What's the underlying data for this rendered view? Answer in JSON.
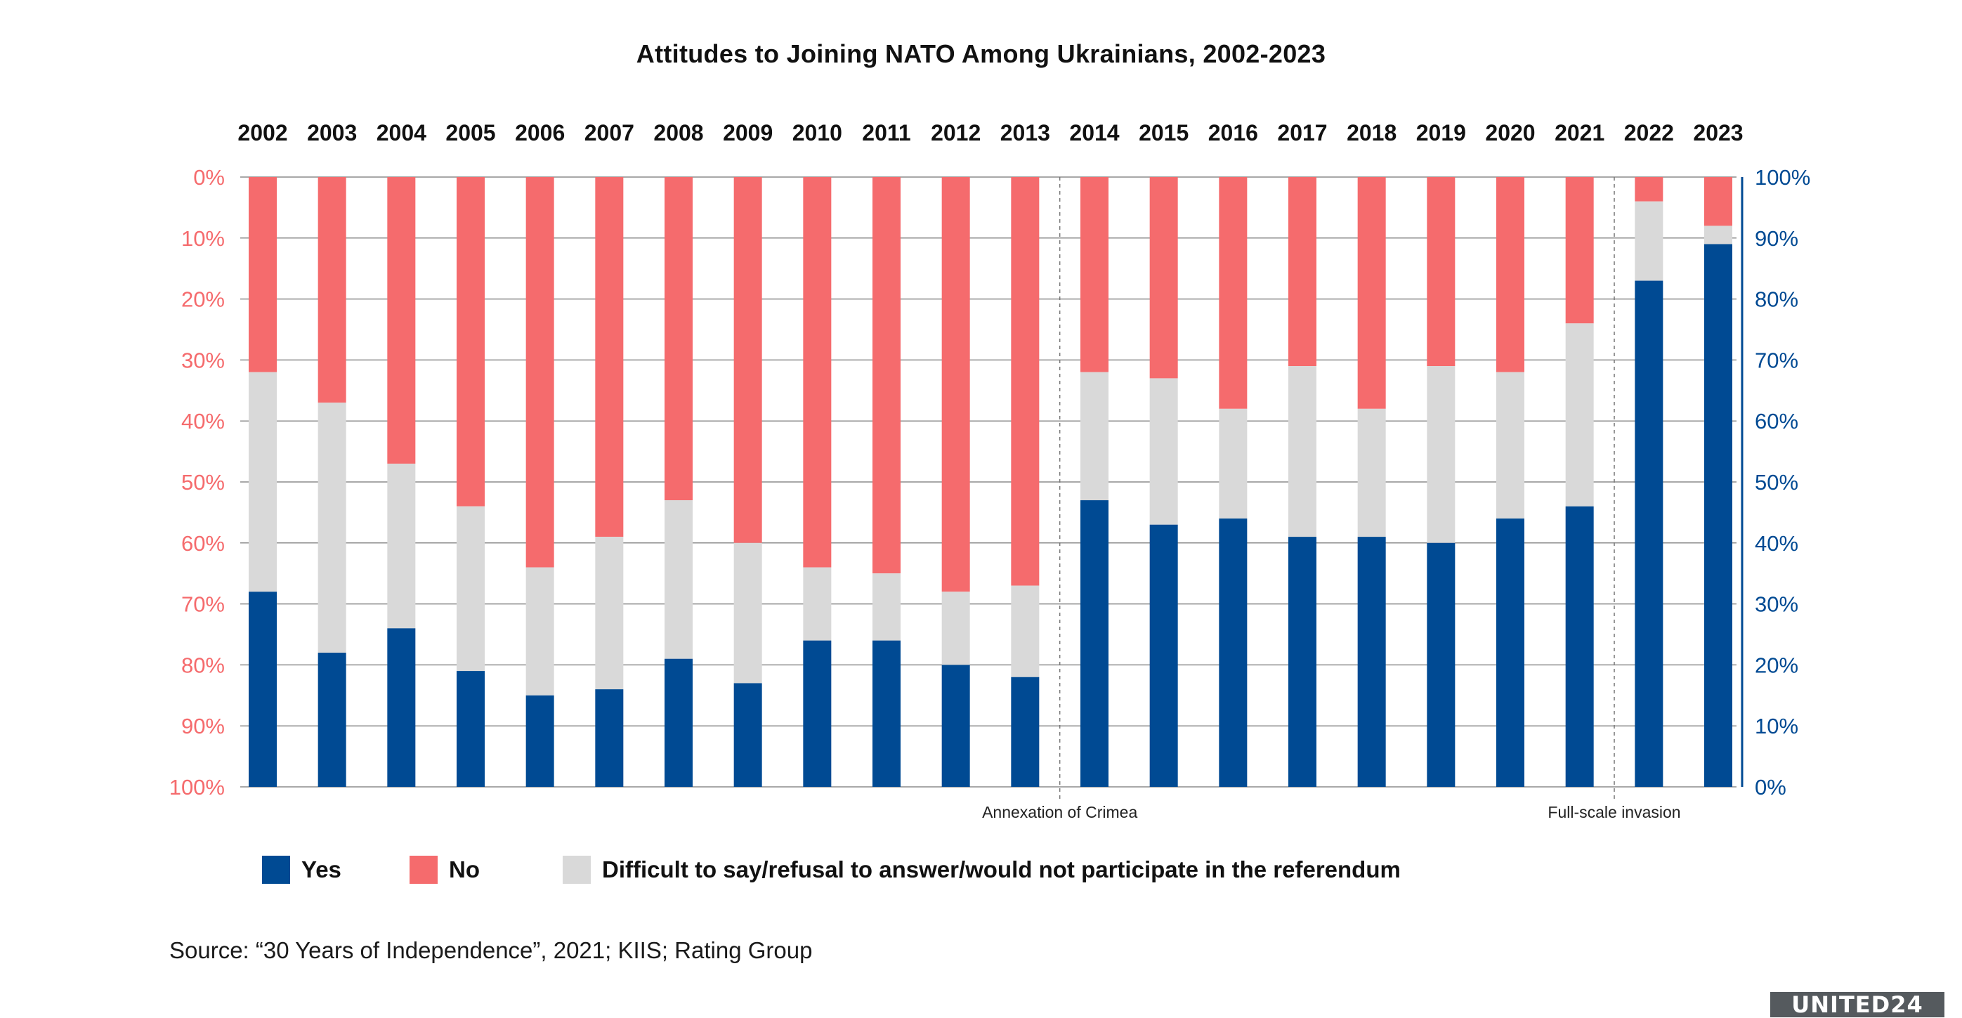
{
  "chart_data": {
    "type": "bar",
    "stacked": true,
    "title": "Attitudes to Joining NATO Among Ukrainians, 2002-2023",
    "categories": [
      "2002",
      "2003",
      "2004",
      "2005",
      "2006",
      "2007",
      "2008",
      "2009",
      "2010",
      "2011",
      "2012",
      "2013",
      "2014",
      "2015",
      "2016",
      "2017",
      "2018",
      "2019",
      "2020",
      "2021",
      "2022",
      "2023"
    ],
    "series": [
      {
        "name": "Yes",
        "color": "#004a93",
        "values": [
          32,
          22,
          26,
          19,
          15,
          16,
          21,
          17,
          24,
          24,
          20,
          18,
          47,
          43,
          44,
          41,
          41,
          40,
          44,
          46,
          83,
          89
        ]
      },
      {
        "name": "No",
        "color": "#f56b6d",
        "values": [
          32,
          37,
          47,
          54,
          64,
          59,
          53,
          60,
          64,
          65,
          68,
          67,
          32,
          33,
          38,
          31,
          38,
          31,
          32,
          24,
          4,
          8
        ]
      },
      {
        "name": "Difficult to say/refusal to answer/would not participate in the referendum",
        "color": "#d9d9d9",
        "values": [
          36,
          41,
          27,
          27,
          21,
          25,
          26,
          23,
          12,
          11,
          12,
          15,
          21,
          24,
          18,
          28,
          21,
          29,
          24,
          30,
          13,
          3
        ]
      }
    ],
    "left_axis": {
      "ticks": [
        "0%",
        "10%",
        "20%",
        "30%",
        "40%",
        "50%",
        "60%",
        "70%",
        "80%",
        "90%",
        "100%"
      ],
      "color": "#f56b6d",
      "direction": "top-down"
    },
    "right_axis": {
      "ticks": [
        "100%",
        "90%",
        "80%",
        "70%",
        "60%",
        "50%",
        "40%",
        "30%",
        "20%",
        "10%",
        "0%"
      ],
      "color": "#004a93",
      "direction": "bottom-up"
    },
    "ylim": [
      0,
      100
    ],
    "grid": true,
    "legend_position": "bottom",
    "annotations": [
      {
        "text": "Annexation of Crimea",
        "between": [
          "2013",
          "2014"
        ]
      },
      {
        "text": "Full-scale invasion",
        "between": [
          "2021",
          "2022"
        ]
      }
    ],
    "source": "Source: “30 Years of Independence”, 2021; KIIS; Rating Group",
    "logo": "UNITED24"
  }
}
